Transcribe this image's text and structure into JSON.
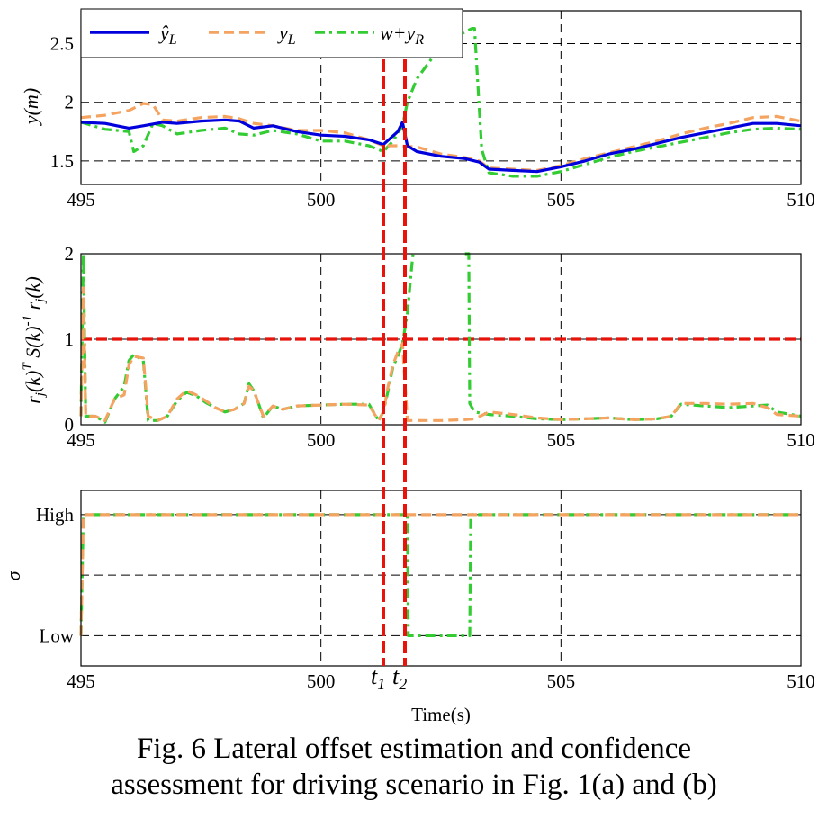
{
  "chart_data": [
    {
      "type": "line",
      "panel": "top",
      "ylabel": "y(m)",
      "xlim": [
        495,
        510
      ],
      "ylim": [
        1.3,
        2.78
      ],
      "xticks": [
        495,
        500,
        505,
        510
      ],
      "yticks": [
        1.5,
        2,
        2.5
      ],
      "ytick_labels": [
        "1.5",
        "2",
        "2.5"
      ],
      "grid": "dashed",
      "legend": {
        "position": "top-left",
        "entries": [
          "ŷL",
          "yL",
          "w+yR"
        ]
      },
      "series": [
        {
          "name": "ŷL",
          "color": "#0000dd",
          "style": "solid",
          "x": [
            495,
            495.5,
            496,
            496.3,
            496.7,
            497,
            497.5,
            498,
            498.3,
            498.6,
            499,
            499.5,
            500,
            500.5,
            501,
            501.3,
            501.6,
            501.7,
            501.8,
            502,
            502.5,
            503,
            503.3,
            503.5,
            504,
            504.5,
            505,
            505.5,
            506,
            506.5,
            507,
            507.5,
            508,
            508.5,
            509,
            509.5,
            510
          ],
          "y": [
            1.83,
            1.82,
            1.78,
            1.8,
            1.83,
            1.82,
            1.84,
            1.85,
            1.84,
            1.78,
            1.8,
            1.75,
            1.72,
            1.71,
            1.68,
            1.64,
            1.75,
            1.83,
            1.63,
            1.58,
            1.54,
            1.52,
            1.49,
            1.43,
            1.42,
            1.41,
            1.45,
            1.5,
            1.56,
            1.6,
            1.65,
            1.7,
            1.74,
            1.78,
            1.82,
            1.82,
            1.8
          ]
        },
        {
          "name": "yL",
          "color": "#f4a460",
          "style": "dashed",
          "x": [
            495,
            495.5,
            496,
            496.3,
            496.5,
            496.7,
            497,
            497.5,
            498,
            498.3,
            498.6,
            499,
            499.5,
            500,
            500.5,
            501,
            501.3,
            501.6,
            502,
            502.5,
            503,
            503.3,
            503.5,
            504,
            504.5,
            505,
            505.5,
            506,
            506.5,
            507,
            507.5,
            508,
            508.5,
            509,
            509.5,
            510
          ],
          "y": [
            1.87,
            1.89,
            1.93,
            1.99,
            1.98,
            1.85,
            1.84,
            1.87,
            1.88,
            1.86,
            1.82,
            1.8,
            1.76,
            1.76,
            1.74,
            1.68,
            1.63,
            1.63,
            1.62,
            1.56,
            1.53,
            1.5,
            1.44,
            1.43,
            1.42,
            1.46,
            1.52,
            1.57,
            1.62,
            1.67,
            1.73,
            1.78,
            1.82,
            1.87,
            1.88,
            1.84
          ]
        },
        {
          "name": "w+yR",
          "color": "#33cc33",
          "style": "dashdot",
          "x": [
            495,
            495.5,
            496,
            496.1,
            496.3,
            496.5,
            496.7,
            497,
            497.5,
            498,
            498.3,
            498.6,
            499,
            499.5,
            500,
            500.5,
            501,
            501.3,
            501.5,
            501.7,
            501.8,
            502,
            502.5,
            503,
            503.15,
            503.2,
            503.35,
            503.5,
            504,
            504.5,
            505,
            505.5,
            506,
            506.5,
            507,
            507.5,
            508,
            508.5,
            509,
            509.5,
            510
          ],
          "y": [
            1.83,
            1.77,
            1.75,
            1.58,
            1.63,
            1.82,
            1.8,
            1.73,
            1.76,
            1.78,
            1.73,
            1.72,
            1.76,
            1.73,
            1.67,
            1.67,
            1.63,
            1.58,
            1.67,
            1.8,
            2.0,
            2.2,
            2.48,
            2.6,
            2.63,
            2.63,
            1.6,
            1.4,
            1.37,
            1.37,
            1.41,
            1.47,
            1.53,
            1.58,
            1.62,
            1.66,
            1.7,
            1.74,
            1.77,
            1.78,
            1.77
          ]
        }
      ]
    },
    {
      "type": "line",
      "panel": "middle",
      "ylabel": "rj(k)TS(k)-1rj(k)",
      "xlim": [
        495,
        510
      ],
      "ylim": [
        0,
        2
      ],
      "xticks": [
        495,
        500,
        505,
        510
      ],
      "yticks": [
        0,
        1,
        2
      ],
      "ytick_labels": [
        "0",
        "1",
        "2"
      ],
      "grid": "dashed",
      "threshold": {
        "value": 1,
        "color": "#e8140c"
      },
      "series": [
        {
          "name": "yL",
          "color": "#f4a460",
          "style": "dashed",
          "x": [
            495,
            495.05,
            495.1,
            495.3,
            495.5,
            495.7,
            495.9,
            496.0,
            496.1,
            496.3,
            496.4,
            496.6,
            496.8,
            497.0,
            497.2,
            497.4,
            497.6,
            497.8,
            498.0,
            498.2,
            498.4,
            498.5,
            498.6,
            498.7,
            498.8,
            499.0,
            499.2,
            499.5,
            500.0,
            500.5,
            501.0,
            501.2,
            501.3,
            501.4,
            501.5,
            501.6,
            501.7,
            501.8,
            502.0,
            502.5,
            503.0,
            503.2,
            503.5,
            504,
            504.5,
            505,
            505.5,
            506,
            506.5,
            507,
            507.3,
            507.5,
            508,
            508.5,
            509,
            509.3,
            509.5,
            510
          ],
          "y": [
            0.1,
            1.6,
            0.1,
            0.1,
            0.05,
            0.3,
            0.35,
            0.7,
            0.8,
            0.78,
            0.1,
            0.05,
            0.1,
            0.3,
            0.4,
            0.35,
            0.28,
            0.2,
            0.15,
            0.18,
            0.25,
            0.45,
            0.4,
            0.25,
            0.1,
            0.22,
            0.18,
            0.22,
            0.23,
            0.24,
            0.23,
            0.05,
            0.15,
            0.45,
            0.7,
            0.85,
            0.95,
            0.05,
            0.05,
            0.05,
            0.06,
            0.07,
            0.15,
            0.12,
            0.08,
            0.06,
            0.07,
            0.08,
            0.06,
            0.07,
            0.1,
            0.25,
            0.25,
            0.24,
            0.25,
            0.2,
            0.12,
            0.1
          ]
        },
        {
          "name": "w+yR",
          "color": "#33cc33",
          "style": "dashdot",
          "x": [
            495,
            495.05,
            495.1,
            495.3,
            495.5,
            495.7,
            495.9,
            496.0,
            496.1,
            496.3,
            496.4,
            496.6,
            496.8,
            497.0,
            497.2,
            497.4,
            497.6,
            497.8,
            498.0,
            498.2,
            498.4,
            498.5,
            498.6,
            498.7,
            498.8,
            499.0,
            499.2,
            499.5,
            500.0,
            500.5,
            501.0,
            501.2,
            501.3,
            501.4,
            501.5,
            501.6,
            501.7,
            501.8,
            501.85,
            501.9,
            501.92,
            501.95,
            502.0
          ],
          "y": [
            0.1,
            2,
            0.1,
            0.1,
            0.03,
            0.3,
            0.45,
            0.75,
            0.82,
            0.75,
            0.05,
            0.05,
            0.1,
            0.28,
            0.38,
            0.34,
            0.26,
            0.2,
            0.15,
            0.18,
            0.25,
            0.48,
            0.4,
            0.25,
            0.08,
            0.22,
            0.18,
            0.22,
            0.23,
            0.24,
            0.24,
            0.05,
            0.15,
            0.4,
            0.68,
            0.8,
            0.95,
            1.3,
            1.6,
            1.9,
            2,
            2,
            2
          ]
        },
        {
          "name": "w+yR-b",
          "color": "#33cc33",
          "style": "dashdot",
          "x": [
            503.0,
            503.08,
            503.1,
            503.2,
            503.5,
            504,
            504.5,
            505,
            505.5,
            506,
            506.5,
            507,
            507.3,
            507.5,
            508,
            508.5,
            509,
            509.3,
            509.5,
            510
          ],
          "y": [
            2,
            2,
            0.25,
            0.15,
            0.12,
            0.1,
            0.07,
            0.06,
            0.07,
            0.08,
            0.06,
            0.07,
            0.1,
            0.24,
            0.22,
            0.2,
            0.22,
            0.23,
            0.15,
            0.1
          ]
        }
      ]
    },
    {
      "type": "line",
      "panel": "bottom",
      "ylabel": "σ",
      "xlabel": "Time(s)",
      "xlim": [
        495,
        510
      ],
      "ylim": [
        -0.25,
        1.2
      ],
      "xticks": [
        495,
        500,
        505,
        510
      ],
      "yticks": [
        0,
        0.5,
        1
      ],
      "ytick_labels": [
        "Low",
        "",
        "High"
      ],
      "grid": "dashed",
      "series": [
        {
          "name": "yL",
          "color": "#f4a460",
          "style": "dashed",
          "x": [
            495,
            495.05,
            495.1,
            510
          ],
          "y": [
            0,
            1,
            1,
            1
          ]
        },
        {
          "name": "w+yR",
          "color": "#33cc33",
          "style": "dashdot",
          "x": [
            495,
            495.05,
            495.1,
            501.8,
            501.82,
            503.1,
            503.12,
            510
          ],
          "y": [
            0,
            1,
            1,
            1,
            0,
            0,
            1,
            1
          ]
        }
      ]
    }
  ],
  "markers": {
    "color": "#e8140c",
    "lines": [
      {
        "label": "t",
        "sub": "1",
        "x": 501.3
      },
      {
        "label": "t",
        "sub": "2",
        "x": 501.75
      }
    ]
  },
  "xlabel": "Time(s)",
  "caption": {
    "line1": "Fig. 6 Lateral offset estimation and confidence",
    "line2": "assessment for driving scenario in Fig. 1(a) and (b)"
  }
}
